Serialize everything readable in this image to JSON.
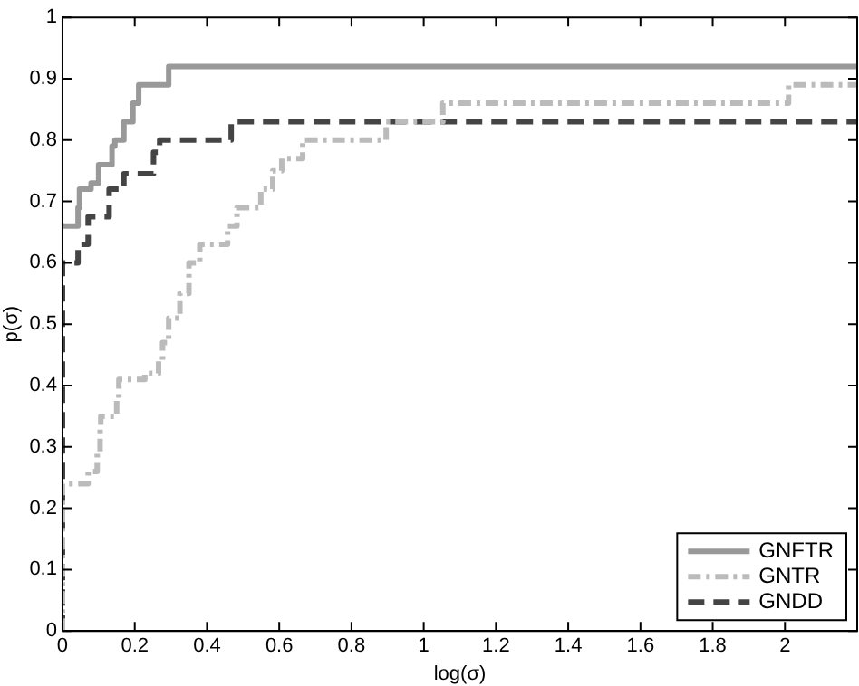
{
  "chart_data": {
    "type": "step",
    "xlabel": "log(σ)",
    "ylabel": "p(σ)",
    "xlim": [
      0,
      2.2
    ],
    "ylim": [
      0,
      1
    ],
    "xticks": [
      0,
      0.2,
      0.4,
      0.6,
      0.8,
      1,
      1.2,
      1.4,
      1.6,
      1.8,
      2
    ],
    "yticks": [
      0,
      0.1,
      0.2,
      0.3,
      0.4,
      0.5,
      0.6,
      0.7,
      0.8,
      0.9,
      1
    ],
    "grid": false,
    "legend": "bottom right",
    "series": [
      {
        "name": "GNFTR",
        "color": "#999999",
        "line_style": "solid",
        "x": [
          0,
          0.043,
          0.047,
          0.079,
          0.1,
          0.137,
          0.145,
          0.17,
          0.195,
          0.211,
          0.294,
          2.2
        ],
        "values": [
          0.66,
          0.69,
          0.72,
          0.73,
          0.76,
          0.79,
          0.8,
          0.83,
          0.86,
          0.89,
          0.92,
          0.92
        ]
      },
      {
        "name": "GNTR",
        "color": "#bbbbbb",
        "line_style": "dashdot",
        "x": [
          0,
          0,
          0.071,
          0.096,
          0.104,
          0.106,
          0.15,
          0.156,
          0.228,
          0.266,
          0.277,
          0.294,
          0.325,
          0.35,
          0.38,
          0.457,
          0.483,
          0.549,
          0.582,
          0.607,
          0.665,
          0.896,
          1.053,
          2.01,
          2.2
        ],
        "values": [
          0,
          0.24,
          0.26,
          0.29,
          0.33,
          0.35,
          0.38,
          0.41,
          0.42,
          0.44,
          0.47,
          0.51,
          0.55,
          0.6,
          0.63,
          0.66,
          0.69,
          0.72,
          0.75,
          0.77,
          0.8,
          0.83,
          0.86,
          0.89,
          0.89
        ]
      },
      {
        "name": "GNDD",
        "color": "#444444",
        "line_style": "dashed",
        "x": [
          0,
          0,
          0.043,
          0.071,
          0.129,
          0.17,
          0.252,
          0.269,
          0.467,
          2.2
        ],
        "values": [
          0,
          0.6,
          0.63,
          0.675,
          0.72,
          0.745,
          0.78,
          0.8,
          0.83,
          0.83
        ]
      }
    ]
  }
}
